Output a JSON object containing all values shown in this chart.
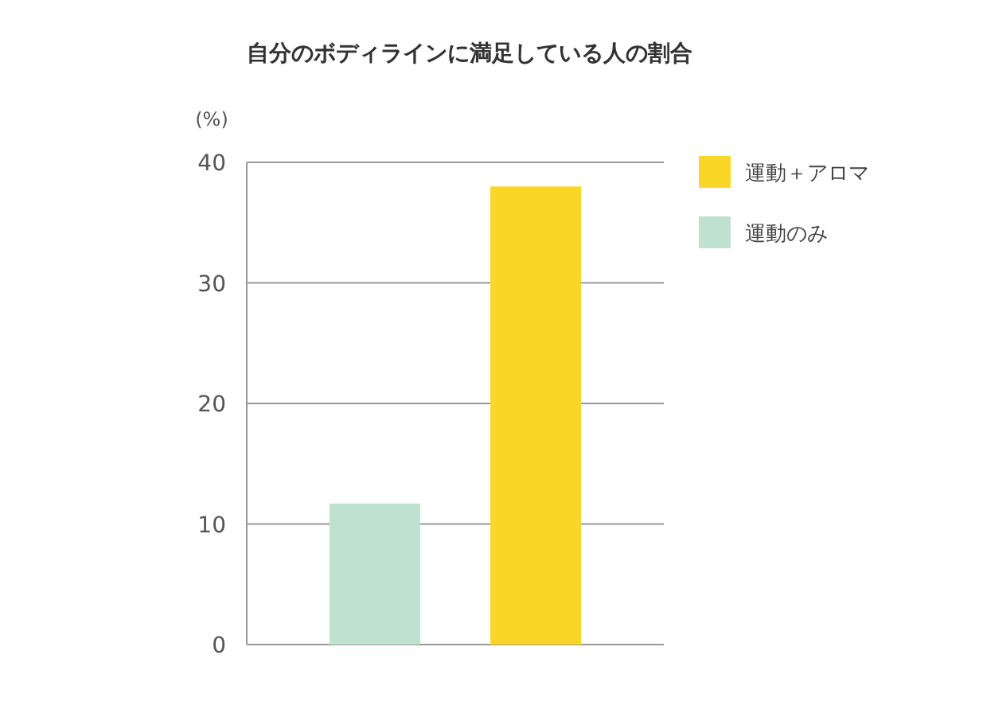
{
  "chart_data": {
    "type": "bar",
    "title": "自分のボディラインに満足している人の割合",
    "ylabel": "(%)",
    "categories": [
      null,
      null
    ],
    "series": [
      {
        "name": "運動＋アロマ",
        "color": "#fad727",
        "values": [
          null,
          38
        ]
      },
      {
        "name": "運動のみ",
        "color": "#bfe1cf",
        "values": [
          11.7,
          null
        ]
      }
    ],
    "ylim": [
      0,
      40
    ],
    "yticks": [
      0,
      10,
      20,
      30,
      40
    ],
    "grid": "y",
    "legend": "right",
    "tick_labels": "y"
  }
}
